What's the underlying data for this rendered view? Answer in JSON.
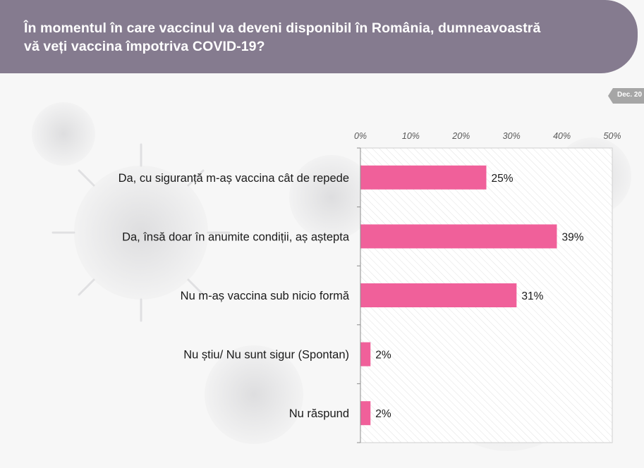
{
  "title": "În momentul în care vaccinul va deveni disponibil în România, dumneavoastră vă veți vaccina împotriva COVID-19?",
  "title_line1": "În momentul în care vaccinul va deveni disponibil în România, dumneavoastră",
  "title_line2": "vă veți vaccina împotriva COVID-19?",
  "date_tag": "Dec. 20",
  "colors": {
    "banner": "#857b8f",
    "bar": "#f0609a",
    "date_tag": "#a6a6a6"
  },
  "chart_data": {
    "type": "bar",
    "orientation": "horizontal",
    "categories": [
      "Da, cu siguranță m-aș vaccina cât de repede",
      "Da, însă doar în anumite condiții, aș aștepta",
      "Nu m-aș vaccina sub nicio formă",
      "Nu știu/ Nu sunt sigur (Spontan)",
      "Nu răspund"
    ],
    "values": [
      25,
      39,
      31,
      2,
      2
    ],
    "value_labels": [
      "25%",
      "39%",
      "31%",
      "2%",
      "2%"
    ],
    "ticks": [
      0,
      10,
      20,
      30,
      40,
      50
    ],
    "tick_labels": [
      "0%",
      "10%",
      "20%",
      "30%",
      "40%",
      "50%"
    ],
    "xlim": [
      0,
      50
    ],
    "axis_position": "top",
    "grid": false,
    "legend": "none"
  }
}
